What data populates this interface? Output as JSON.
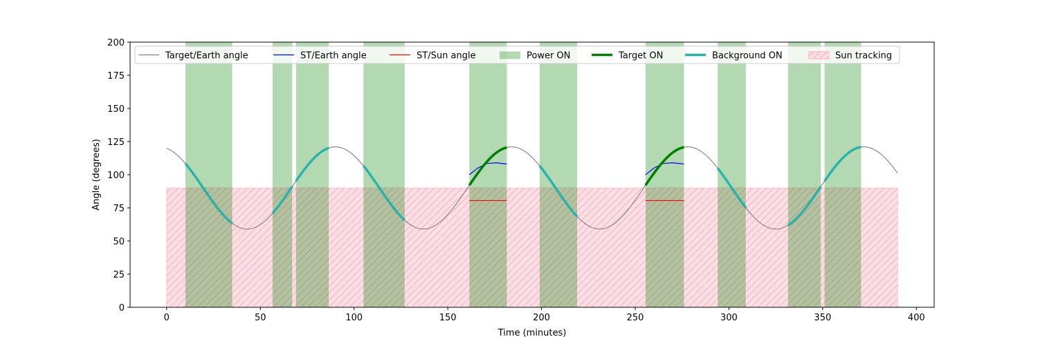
{
  "chart_data": {
    "type": "line",
    "title": "",
    "xlabel": "Time (minutes)",
    "ylabel": "Angle (degrees)",
    "xlim": [
      -19.5,
      409.5
    ],
    "ylim": [
      0,
      200
    ],
    "xticks": [
      0,
      50,
      100,
      150,
      200,
      250,
      300,
      350,
      400
    ],
    "yticks": [
      0,
      25,
      50,
      75,
      100,
      125,
      150,
      175,
      200
    ],
    "grid": false,
    "legend_position": "top",
    "legend": [
      {
        "label": "Target/Earth angle",
        "kind": "line",
        "color": "#808080"
      },
      {
        "label": "ST/Earth angle",
        "kind": "line",
        "color": "#0000ff"
      },
      {
        "label": "ST/Sun angle",
        "kind": "line",
        "color": "#ff0000"
      },
      {
        "label": "Power ON",
        "kind": "patch",
        "color": "#008000"
      },
      {
        "label": "Target ON",
        "kind": "thickline",
        "color": "#008000"
      },
      {
        "label": "Background ON",
        "kind": "thickline",
        "color": "#20b2aa"
      },
      {
        "label": "Sun tracking",
        "kind": "hatchpatch",
        "color": "#ffc0cb"
      }
    ],
    "target_earth_curve": {
      "description_of_model": "sinusoid",
      "mean": 90,
      "amplitude": 31,
      "period": 94,
      "phase_peak_time": 90,
      "x_range": [
        0,
        390
      ]
    },
    "power_on_intervals": [
      [
        10,
        35
      ],
      [
        56.5,
        67
      ],
      [
        69,
        86.5
      ],
      [
        105,
        127
      ],
      [
        161.5,
        181.5
      ],
      [
        199,
        219
      ],
      [
        255.5,
        276
      ],
      [
        294,
        309
      ],
      [
        331.5,
        349
      ],
      [
        351,
        370.5
      ]
    ],
    "background_on_intervals": [
      [
        10,
        35
      ],
      [
        56.5,
        67
      ],
      [
        69,
        86.5
      ],
      [
        105,
        127
      ],
      [
        199,
        219
      ],
      [
        294,
        309
      ],
      [
        331.5,
        349
      ],
      [
        351,
        370.5
      ]
    ],
    "target_on_intervals": [
      [
        161.5,
        181.5
      ],
      [
        255.5,
        276
      ]
    ],
    "st_earth_segments": [
      {
        "x": [
          161.5,
          166,
          171,
          176,
          181.5
        ],
        "y": [
          100,
          105,
          108.5,
          109,
          108
        ]
      },
      {
        "x": [
          255.5,
          260,
          265,
          270,
          276
        ],
        "y": [
          100,
          105,
          108.5,
          109,
          108
        ]
      }
    ],
    "st_sun_segments": [
      {
        "x": [
          161.5,
          181.5
        ],
        "y": [
          80.5,
          80.5
        ]
      },
      {
        "x": [
          255.5,
          276
        ],
        "y": [
          80.5,
          80.5
        ]
      }
    ],
    "sun_tracking_band": {
      "x": [
        0,
        390
      ],
      "y": [
        0,
        90
      ]
    }
  }
}
